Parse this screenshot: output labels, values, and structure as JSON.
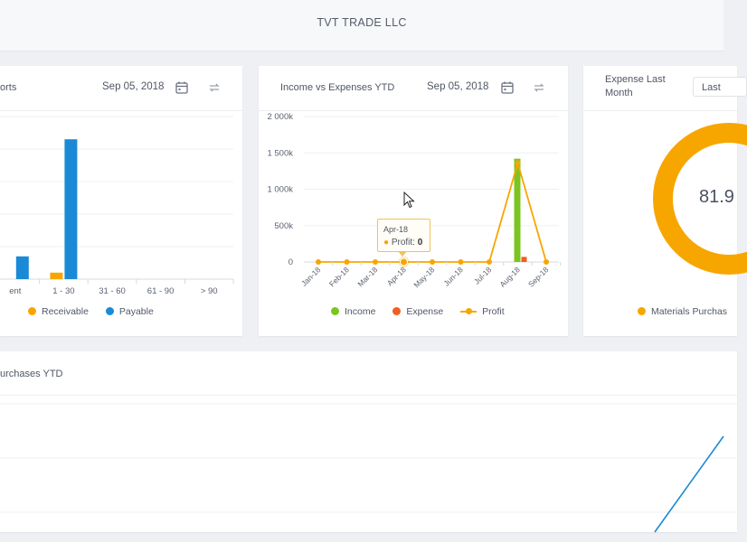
{
  "header": {
    "company": "TVT TRADE LLC"
  },
  "aging_card": {
    "title": "orts",
    "date": "Sep 05, 2018",
    "legend": [
      {
        "label": "Receivable",
        "color": "#f7a600"
      },
      {
        "label": "Payable",
        "color": "#1a8ad6"
      }
    ]
  },
  "income_card": {
    "title": "Income vs Expenses YTD",
    "date": "Sep 05, 2018",
    "legend": [
      {
        "label": "Income",
        "color": "#7cc520"
      },
      {
        "label": "Expense",
        "color": "#f15d22"
      },
      {
        "label": "Profit",
        "color": "#f7a600"
      }
    ],
    "tooltip": {
      "month": "Apr-18",
      "label": "Profit:",
      "value": "0"
    }
  },
  "expense_card": {
    "title_line1": "Expense Last",
    "title_line2": "Month",
    "dropdown": "Last",
    "donut_value": "81.9",
    "legend_label": "Materials Purchas",
    "legend_color": "#f7a600"
  },
  "purchases_card": {
    "title": "urchases YTD"
  },
  "chart_data": [
    {
      "type": "bar",
      "categories": [
        "ent",
        "1 - 30",
        "31 - 60",
        "61 - 90",
        "> 90"
      ],
      "series": [
        {
          "name": "Receivable",
          "values": [
            null,
            0.2,
            0,
            0,
            0
          ]
        },
        {
          "name": "Payable",
          "values": [
            0.7,
            4.3,
            0,
            0,
            0
          ]
        }
      ],
      "ylim": [
        0,
        5
      ],
      "grid": true,
      "legend": "bottom"
    },
    {
      "type": "bar",
      "categories": [
        "Jan-18",
        "Feb-18",
        "Mar-18",
        "Apr-18",
        "May-18",
        "Jun-18",
        "Jul-18",
        "Aug-18",
        "Sep-18"
      ],
      "series": [
        {
          "name": "Income",
          "values": [
            0,
            0,
            0,
            0,
            0,
            0,
            0,
            1420000,
            0
          ]
        },
        {
          "name": "Expense",
          "values": [
            0,
            0,
            0,
            0,
            0,
            0,
            0,
            70000,
            0
          ]
        },
        {
          "name": "Profit",
          "values": [
            0,
            0,
            0,
            0,
            0,
            0,
            0,
            1360000,
            0
          ]
        }
      ],
      "yticks": [
        "0",
        "500k",
        "1 000k",
        "1 500k",
        "2 000k"
      ],
      "ylim": [
        0,
        2000000
      ],
      "grid": true,
      "legend": "bottom"
    },
    {
      "type": "pie",
      "labels": [
        "Materials Purchas"
      ],
      "values": [
        81.9
      ]
    }
  ]
}
